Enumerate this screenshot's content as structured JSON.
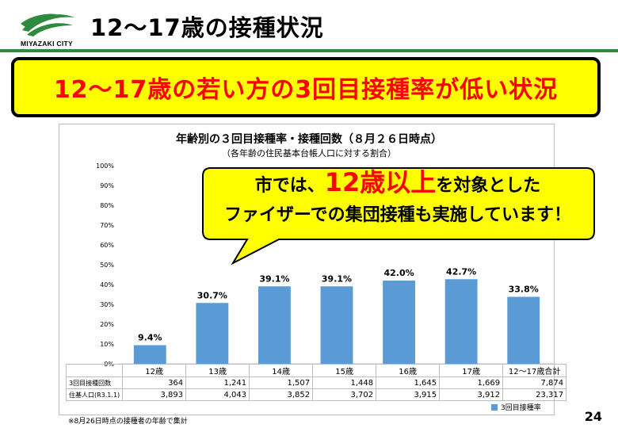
{
  "header": {
    "logo_text": "MIYAZAKI CITY",
    "title": "12～17歳の接種状況"
  },
  "banner": {
    "text": "12～17歳の若い方の3回目接種率が低い状況"
  },
  "callout": {
    "line1_prefix": "市では、",
    "line1_highlight": "12歳以上",
    "line1_suffix": "を対象とした",
    "line2": "ファイザーでの集団接種も実施しています！"
  },
  "chart_data": {
    "type": "bar",
    "title": "年齢別の３回目接種率・接種回数（８月２６日時点）",
    "subtitle": "（各年齢の住民基本台帳人口に対する割合）",
    "categories": [
      "12歳",
      "13歳",
      "14歳",
      "15歳",
      "16歳",
      "17歳",
      "12～17歳合計"
    ],
    "series": [
      {
        "name": "3回目接種率",
        "values": [
          9.4,
          30.7,
          39.1,
          39.1,
          42.0,
          42.7,
          33.8
        ]
      }
    ],
    "data_labels": [
      "9.4%",
      "30.7%",
      "39.1%",
      "39.1%",
      "42.0%",
      "42.7%",
      "33.8%"
    ],
    "y_ticks": [
      "0%",
      "10%",
      "20%",
      "30%",
      "40%",
      "50%",
      "60%",
      "70%",
      "80%",
      "90%",
      "100%"
    ],
    "ylim": [
      0,
      100
    ],
    "grid": false,
    "legend": "bottom-right",
    "bar_color": "#5b9bd5",
    "table": {
      "rows": [
        {
          "label": "3回目接種回数",
          "values": [
            "364",
            "1,241",
            "1,507",
            "1,448",
            "1,645",
            "1,669",
            "7,874"
          ]
        },
        {
          "label": "住基人口(R3.1.1)",
          "values": [
            "3,893",
            "4,043",
            "3,852",
            "3,702",
            "3,915",
            "3,912",
            "23,317"
          ]
        }
      ]
    }
  },
  "footnote": "※8月26日時点の接種者の年齢で集計",
  "page_number": "24",
  "colors": {
    "banner_bg": "#ffff00",
    "banner_text": "#ff0000",
    "accent_green": "#2e8b3e",
    "callout_highlight": "#ff0000"
  }
}
